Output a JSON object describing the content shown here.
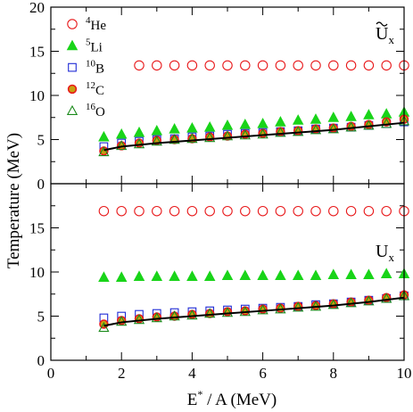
{
  "chart_data": {
    "type": "scatter",
    "xlabel": "E* / A (MeV)",
    "xlabel_parts": {
      "main": "E",
      "sup": "*",
      "rest": " / A (MeV)"
    },
    "ylabel": "Temperature (MeV)",
    "xlim": [
      0,
      10
    ],
    "x_ticks": [
      "0",
      "2",
      "4",
      "6",
      "8",
      "10"
    ],
    "legend": {
      "placement": "top-left of upper panel",
      "entries": [
        {
          "sup": "4",
          "base": "He"
        },
        {
          "sup": "5",
          "base": "Li"
        },
        {
          "sup": "10",
          "base": "B"
        },
        {
          "sup": "12",
          "base": "C"
        },
        {
          "sup": "16",
          "base": "O"
        }
      ]
    },
    "colors": {
      "He": "#e8191b",
      "Li": "#19d419",
      "B": "#1f2bd6",
      "C_edge": "#e8191b",
      "C_fill": "#c8a010",
      "O": "#1a8a1a",
      "line": "#000000"
    },
    "x": [
      1.5,
      2.0,
      2.5,
      3.0,
      3.5,
      4.0,
      4.5,
      5.0,
      5.5,
      6.0,
      6.5,
      7.0,
      7.5,
      8.0,
      8.5,
      9.0,
      9.5,
      10.0
    ],
    "panels": [
      {
        "label_main": "U",
        "label_sub": "x",
        "label_tilde": true,
        "ylim": [
          0,
          20
        ],
        "y_ticks": [
          "0",
          "5",
          "10",
          "15",
          "20"
        ],
        "series": [
          {
            "name": "4He",
            "marker": "open-circle",
            "x": [
              2.5,
              3.0,
              3.5,
              4.0,
              4.5,
              5.0,
              5.5,
              6.0,
              6.5,
              7.0,
              7.5,
              8.0,
              8.5,
              9.0,
              9.5,
              10.0
            ],
            "values": [
              13.4,
              13.4,
              13.4,
              13.4,
              13.4,
              13.4,
              13.4,
              13.4,
              13.4,
              13.4,
              13.4,
              13.4,
              13.4,
              13.4,
              13.4,
              13.4
            ]
          },
          {
            "name": "5Li",
            "marker": "filled-triangle",
            "values": [
              5.3,
              5.6,
              5.8,
              6.0,
              6.2,
              6.3,
              6.4,
              6.6,
              6.7,
              6.8,
              7.0,
              7.2,
              7.3,
              7.5,
              7.6,
              7.8,
              7.9,
              8.1
            ]
          },
          {
            "name": "10B",
            "marker": "open-square",
            "values": [
              4.2,
              4.6,
              4.8,
              5.0,
              5.1,
              5.3,
              5.4,
              5.6,
              5.7,
              5.8,
              5.9,
              6.0,
              6.2,
              6.3,
              6.4,
              6.6,
              6.8,
              7.0
            ]
          },
          {
            "name": "12C",
            "marker": "filled-circle",
            "values": [
              3.7,
              4.3,
              4.6,
              4.9,
              5.0,
              5.1,
              5.3,
              5.4,
              5.6,
              5.7,
              5.9,
              6.0,
              6.2,
              6.3,
              6.5,
              6.7,
              7.0,
              7.3
            ]
          },
          {
            "name": "16O",
            "marker": "open-triangle",
            "values": [
              3.6,
              4.3,
              4.5,
              4.8,
              5.0,
              5.1,
              5.2,
              5.4,
              5.5,
              5.6,
              5.8,
              5.9,
              6.1,
              6.2,
              6.4,
              6.6,
              6.8,
              7.1
            ]
          },
          {
            "name": "",
            "marker": "line",
            "x": [
              1.5,
              2.0,
              3.0,
              4.0,
              5.0,
              6.0,
              7.0,
              8.0,
              9.0,
              10.0
            ],
            "values": [
              3.8,
              4.2,
              4.6,
              4.9,
              5.2,
              5.5,
              5.8,
              6.1,
              6.5,
              6.9
            ]
          }
        ]
      },
      {
        "label_main": "U",
        "label_sub": "x",
        "label_tilde": false,
        "ylim": [
          0,
          20
        ],
        "y_ticks": [
          "0",
          "5",
          "10",
          "15"
        ],
        "series": [
          {
            "name": "4He",
            "marker": "open-circle",
            "values": [
              16.9,
              16.9,
              16.9,
              16.9,
              16.9,
              16.9,
              16.9,
              16.9,
              16.9,
              16.9,
              16.9,
              16.9,
              16.9,
              16.9,
              16.9,
              16.9,
              16.9,
              16.9
            ]
          },
          {
            "name": "5Li",
            "marker": "filled-triangle",
            "values": [
              9.4,
              9.4,
              9.5,
              9.5,
              9.5,
              9.5,
              9.5,
              9.6,
              9.6,
              9.6,
              9.6,
              9.6,
              9.6,
              9.7,
              9.7,
              9.7,
              9.8,
              9.8
            ]
          },
          {
            "name": "10B",
            "marker": "open-square",
            "values": [
              4.8,
              5.0,
              5.2,
              5.3,
              5.4,
              5.5,
              5.6,
              5.7,
              5.8,
              5.9,
              6.0,
              6.1,
              6.3,
              6.4,
              6.6,
              6.8,
              7.0,
              7.3
            ]
          },
          {
            "name": "12C",
            "marker": "filled-circle",
            "values": [
              4.1,
              4.5,
              4.7,
              4.9,
              5.0,
              5.2,
              5.3,
              5.5,
              5.6,
              5.8,
              5.9,
              6.1,
              6.2,
              6.4,
              6.6,
              6.8,
              7.1,
              7.4
            ]
          },
          {
            "name": "16O",
            "marker": "open-triangle",
            "values": [
              3.7,
              4.4,
              4.6,
              4.8,
              5.0,
              5.1,
              5.3,
              5.4,
              5.5,
              5.7,
              5.8,
              6.0,
              6.1,
              6.3,
              6.5,
              6.7,
              7.0,
              7.3
            ]
          },
          {
            "name": "",
            "marker": "line",
            "x": [
              1.5,
              2.0,
              3.0,
              4.0,
              5.0,
              6.0,
              7.0,
              8.0,
              9.0,
              10.0
            ],
            "values": [
              3.9,
              4.3,
              4.7,
              5.0,
              5.3,
              5.6,
              5.9,
              6.2,
              6.6,
              7.1
            ]
          }
        ]
      }
    ]
  }
}
